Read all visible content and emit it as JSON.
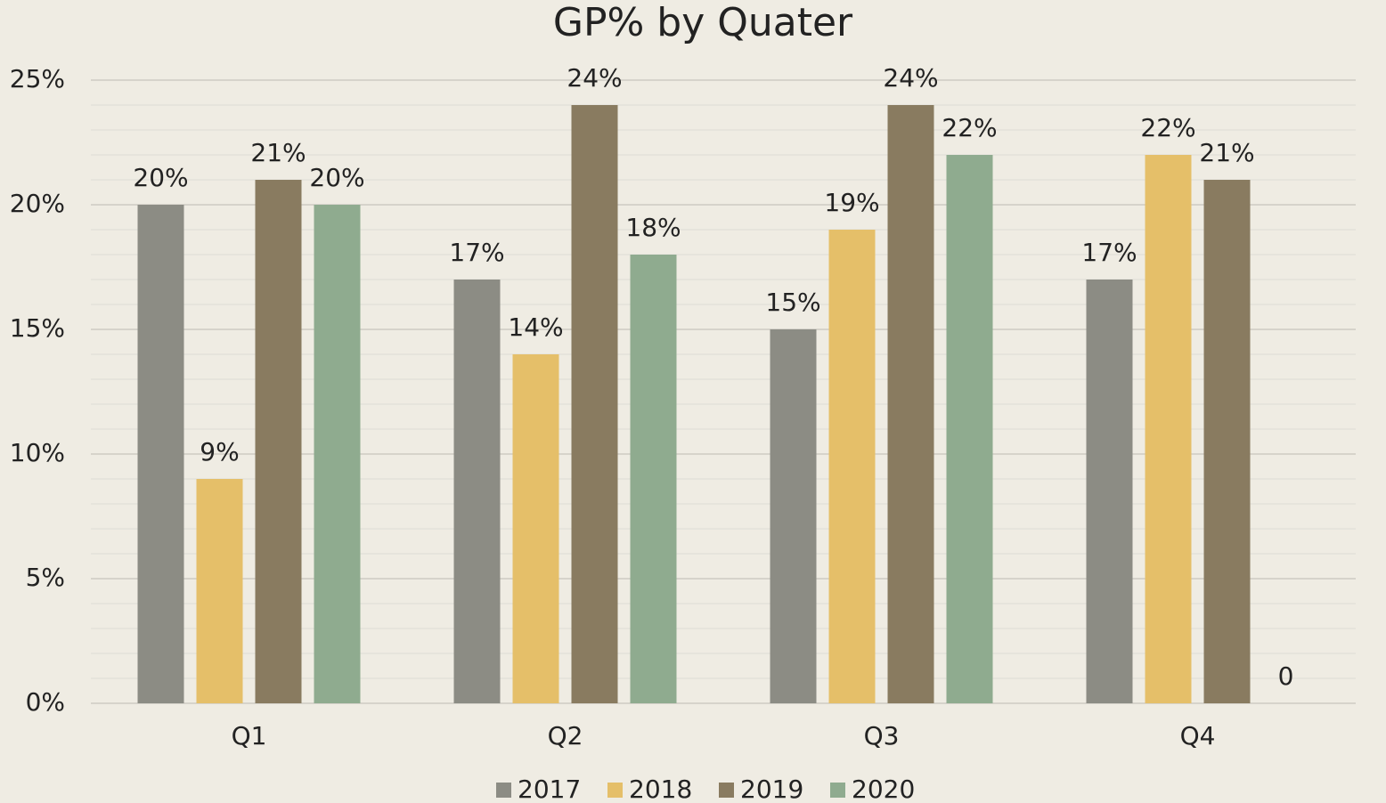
{
  "chart_data": {
    "type": "bar",
    "title": "GP% by Quater",
    "categories": [
      "Q1",
      "Q2",
      "Q3",
      "Q4"
    ],
    "series": [
      {
        "name": "2017",
        "color": "#8c8c84",
        "values": [
          20,
          17,
          15,
          17
        ],
        "value_labels": [
          "20%",
          "17%",
          "15%",
          "17%"
        ]
      },
      {
        "name": "2018",
        "color": "#e5bf69",
        "values": [
          9,
          14,
          19,
          22
        ],
        "value_labels": [
          "9%",
          "14%",
          "19%",
          "22%"
        ]
      },
      {
        "name": "2019",
        "color": "#897b60",
        "values": [
          21,
          24,
          24,
          21
        ],
        "value_labels": [
          "21%",
          "24%",
          "24%",
          "21%"
        ]
      },
      {
        "name": "2020",
        "color": "#8fab8f",
        "values": [
          20,
          18,
          22,
          0
        ],
        "value_labels": [
          "20%",
          "18%",
          "22%",
          "0"
        ]
      }
    ],
    "ylim": [
      0,
      25
    ],
    "yticks": [
      {
        "value": 0,
        "label": "0%"
      },
      {
        "value": 5,
        "label": "5%"
      },
      {
        "value": 10,
        "label": "10%"
      },
      {
        "value": 15,
        "label": "15%"
      },
      {
        "value": 20,
        "label": "20%"
      },
      {
        "value": 25,
        "label": "25%"
      }
    ],
    "minor_yticks": [
      1,
      2,
      3,
      4,
      6,
      7,
      8,
      9,
      11,
      12,
      13,
      14,
      16,
      17,
      18,
      19,
      21,
      22,
      23,
      24
    ],
    "grid": true,
    "legend": "bottom"
  }
}
